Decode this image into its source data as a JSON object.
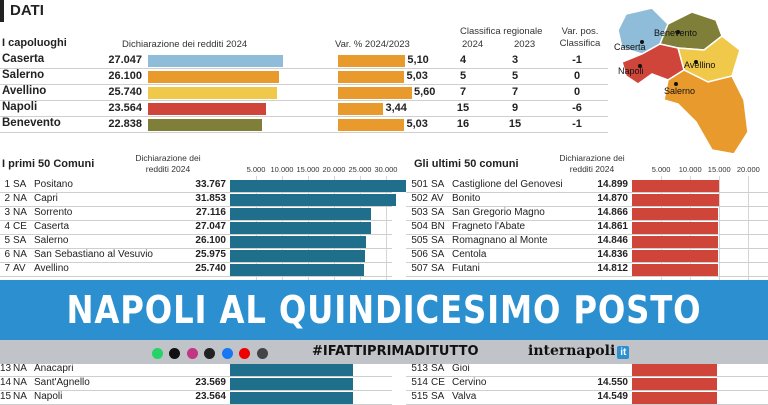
{
  "header": {
    "title": "DATI"
  },
  "capoluoghi": {
    "title": "I capoluoghi",
    "col_decl": "Dichiarazione dei redditi 2024",
    "col_var": "Var. % 2024/2023",
    "col_class": "Classifica regionale",
    "col_2024": "2024",
    "col_2023": "2023",
    "col_varpos": "Var. pos. Classifica",
    "rows": [
      {
        "city": "Caserta",
        "decl": "27.047",
        "var": "5,10",
        "r2024": "4",
        "r2023": "3",
        "vp": "-1",
        "v": 27047,
        "pct": 5.1,
        "color": "#8fbcd9"
      },
      {
        "city": "Salerno",
        "decl": "26.100",
        "var": "5,03",
        "r2024": "5",
        "r2023": "5",
        "vp": "0",
        "v": 26100,
        "pct": 5.03,
        "color": "#e89a2c"
      },
      {
        "city": "Avellino",
        "decl": "25.740",
        "var": "5,60",
        "r2024": "7",
        "r2023": "7",
        "vp": "0",
        "v": 25740,
        "pct": 5.6,
        "color": "#f0c84a"
      },
      {
        "city": "Napoli",
        "decl": "23.564",
        "var": "3,44",
        "r2024": "15",
        "r2023": "9",
        "vp": "-6",
        "v": 23564,
        "pct": 3.44,
        "color": "#d0453a"
      },
      {
        "city": "Benevento",
        "decl": "22.838",
        "var": "5,03",
        "r2024": "16",
        "r2023": "15",
        "vp": "-1",
        "v": 22838,
        "pct": 5.03,
        "color": "#7f7f3a"
      }
    ]
  },
  "map": {
    "labels": [
      "Caserta",
      "Benevento",
      "Avellino",
      "Napoli",
      "Salerno"
    ]
  },
  "chart_data": [
    {
      "type": "bar",
      "title": "I primi 50 Comuni",
      "ylabel": "Dichiarazione dei redditi 2024",
      "ticks": [
        "5.000",
        "10.000",
        "15.000",
        "20.000",
        "25.000",
        "30.000"
      ],
      "xlim": [
        0,
        35000
      ],
      "rows": [
        {
          "rank": "1",
          "prov": "SA",
          "name": "Positano",
          "label": "33.767",
          "value": 33767
        },
        {
          "rank": "2",
          "prov": "NA",
          "name": "Capri",
          "label": "31.853",
          "value": 31853
        },
        {
          "rank": "3",
          "prov": "NA",
          "name": "Sorrento",
          "label": "27.116",
          "value": 27116
        },
        {
          "rank": "4",
          "prov": "CE",
          "name": "Caserta",
          "label": "27.047",
          "value": 27047
        },
        {
          "rank": "5",
          "prov": "SA",
          "name": "Salerno",
          "label": "26.100",
          "value": 26100
        },
        {
          "rank": "6",
          "prov": "NA",
          "name": "San Sebastiano al Vesuvio",
          "label": "25.975",
          "value": 25975
        },
        {
          "rank": "7",
          "prov": "AV",
          "name": "Avellino",
          "label": "25.740",
          "value": 25740
        }
      ],
      "rows_bottom": [
        {
          "rank": "13",
          "prov": "NA",
          "name": "Anacapri",
          "label": "",
          "value": 23700
        },
        {
          "rank": "14",
          "prov": "NA",
          "name": "Sant'Agnello",
          "label": "23.569",
          "value": 23569
        },
        {
          "rank": "15",
          "prov": "NA",
          "name": "Napoli",
          "label": "23.564",
          "value": 23564
        }
      ]
    },
    {
      "type": "bar",
      "title": "Gli ultimi 50 comuni",
      "ylabel": "Dichiarazione dei redditi 2024",
      "ticks": [
        "5.000",
        "10.000",
        "15.000",
        "20.000"
      ],
      "xlim": [
        0,
        22000
      ],
      "rows": [
        {
          "rank": "501",
          "prov": "SA",
          "name": "Castiglione del Genovesi",
          "label": "14.899",
          "value": 14899
        },
        {
          "rank": "502",
          "prov": "AV",
          "name": "Bonito",
          "label": "14.870",
          "value": 14870
        },
        {
          "rank": "503",
          "prov": "SA",
          "name": "San Gregorio Magno",
          "label": "14.866",
          "value": 14866
        },
        {
          "rank": "504",
          "prov": "BN",
          "name": "Fragneto l'Abate",
          "label": "14.861",
          "value": 14861
        },
        {
          "rank": "505",
          "prov": "SA",
          "name": "Romagnano al Monte",
          "label": "14.846",
          "value": 14846
        },
        {
          "rank": "506",
          "prov": "SA",
          "name": "Centola",
          "label": "14.836",
          "value": 14836
        },
        {
          "rank": "507",
          "prov": "SA",
          "name": "Futani",
          "label": "14.812",
          "value": 14812
        }
      ],
      "rows_bottom": [
        {
          "rank": "513",
          "prov": "SA",
          "name": "Gioi",
          "label": "",
          "value": 14560
        },
        {
          "rank": "514",
          "prov": "CE",
          "name": "Cervino",
          "label": "14.550",
          "value": 14550
        },
        {
          "rank": "515",
          "prov": "SA",
          "name": "Valva",
          "label": "14.549",
          "value": 14549
        }
      ]
    }
  ],
  "banner": {
    "headline": "NAPOLI AL QUINDICESIMO POSTO"
  },
  "footer": {
    "hashtag": "#IFATTIPRIMADITUTTO",
    "brand": "internapoli",
    "brand_suffix": "it",
    "social_icons": [
      "whatsapp-icon",
      "x-icon",
      "instagram-icon",
      "tiktok-icon",
      "facebook-icon",
      "youtube-icon",
      "threads-icon"
    ]
  },
  "colors": {
    "primi_bar": "#1f6e8c",
    "ultimi_bar": "#d0453a",
    "banner": "#2b8fd0"
  }
}
